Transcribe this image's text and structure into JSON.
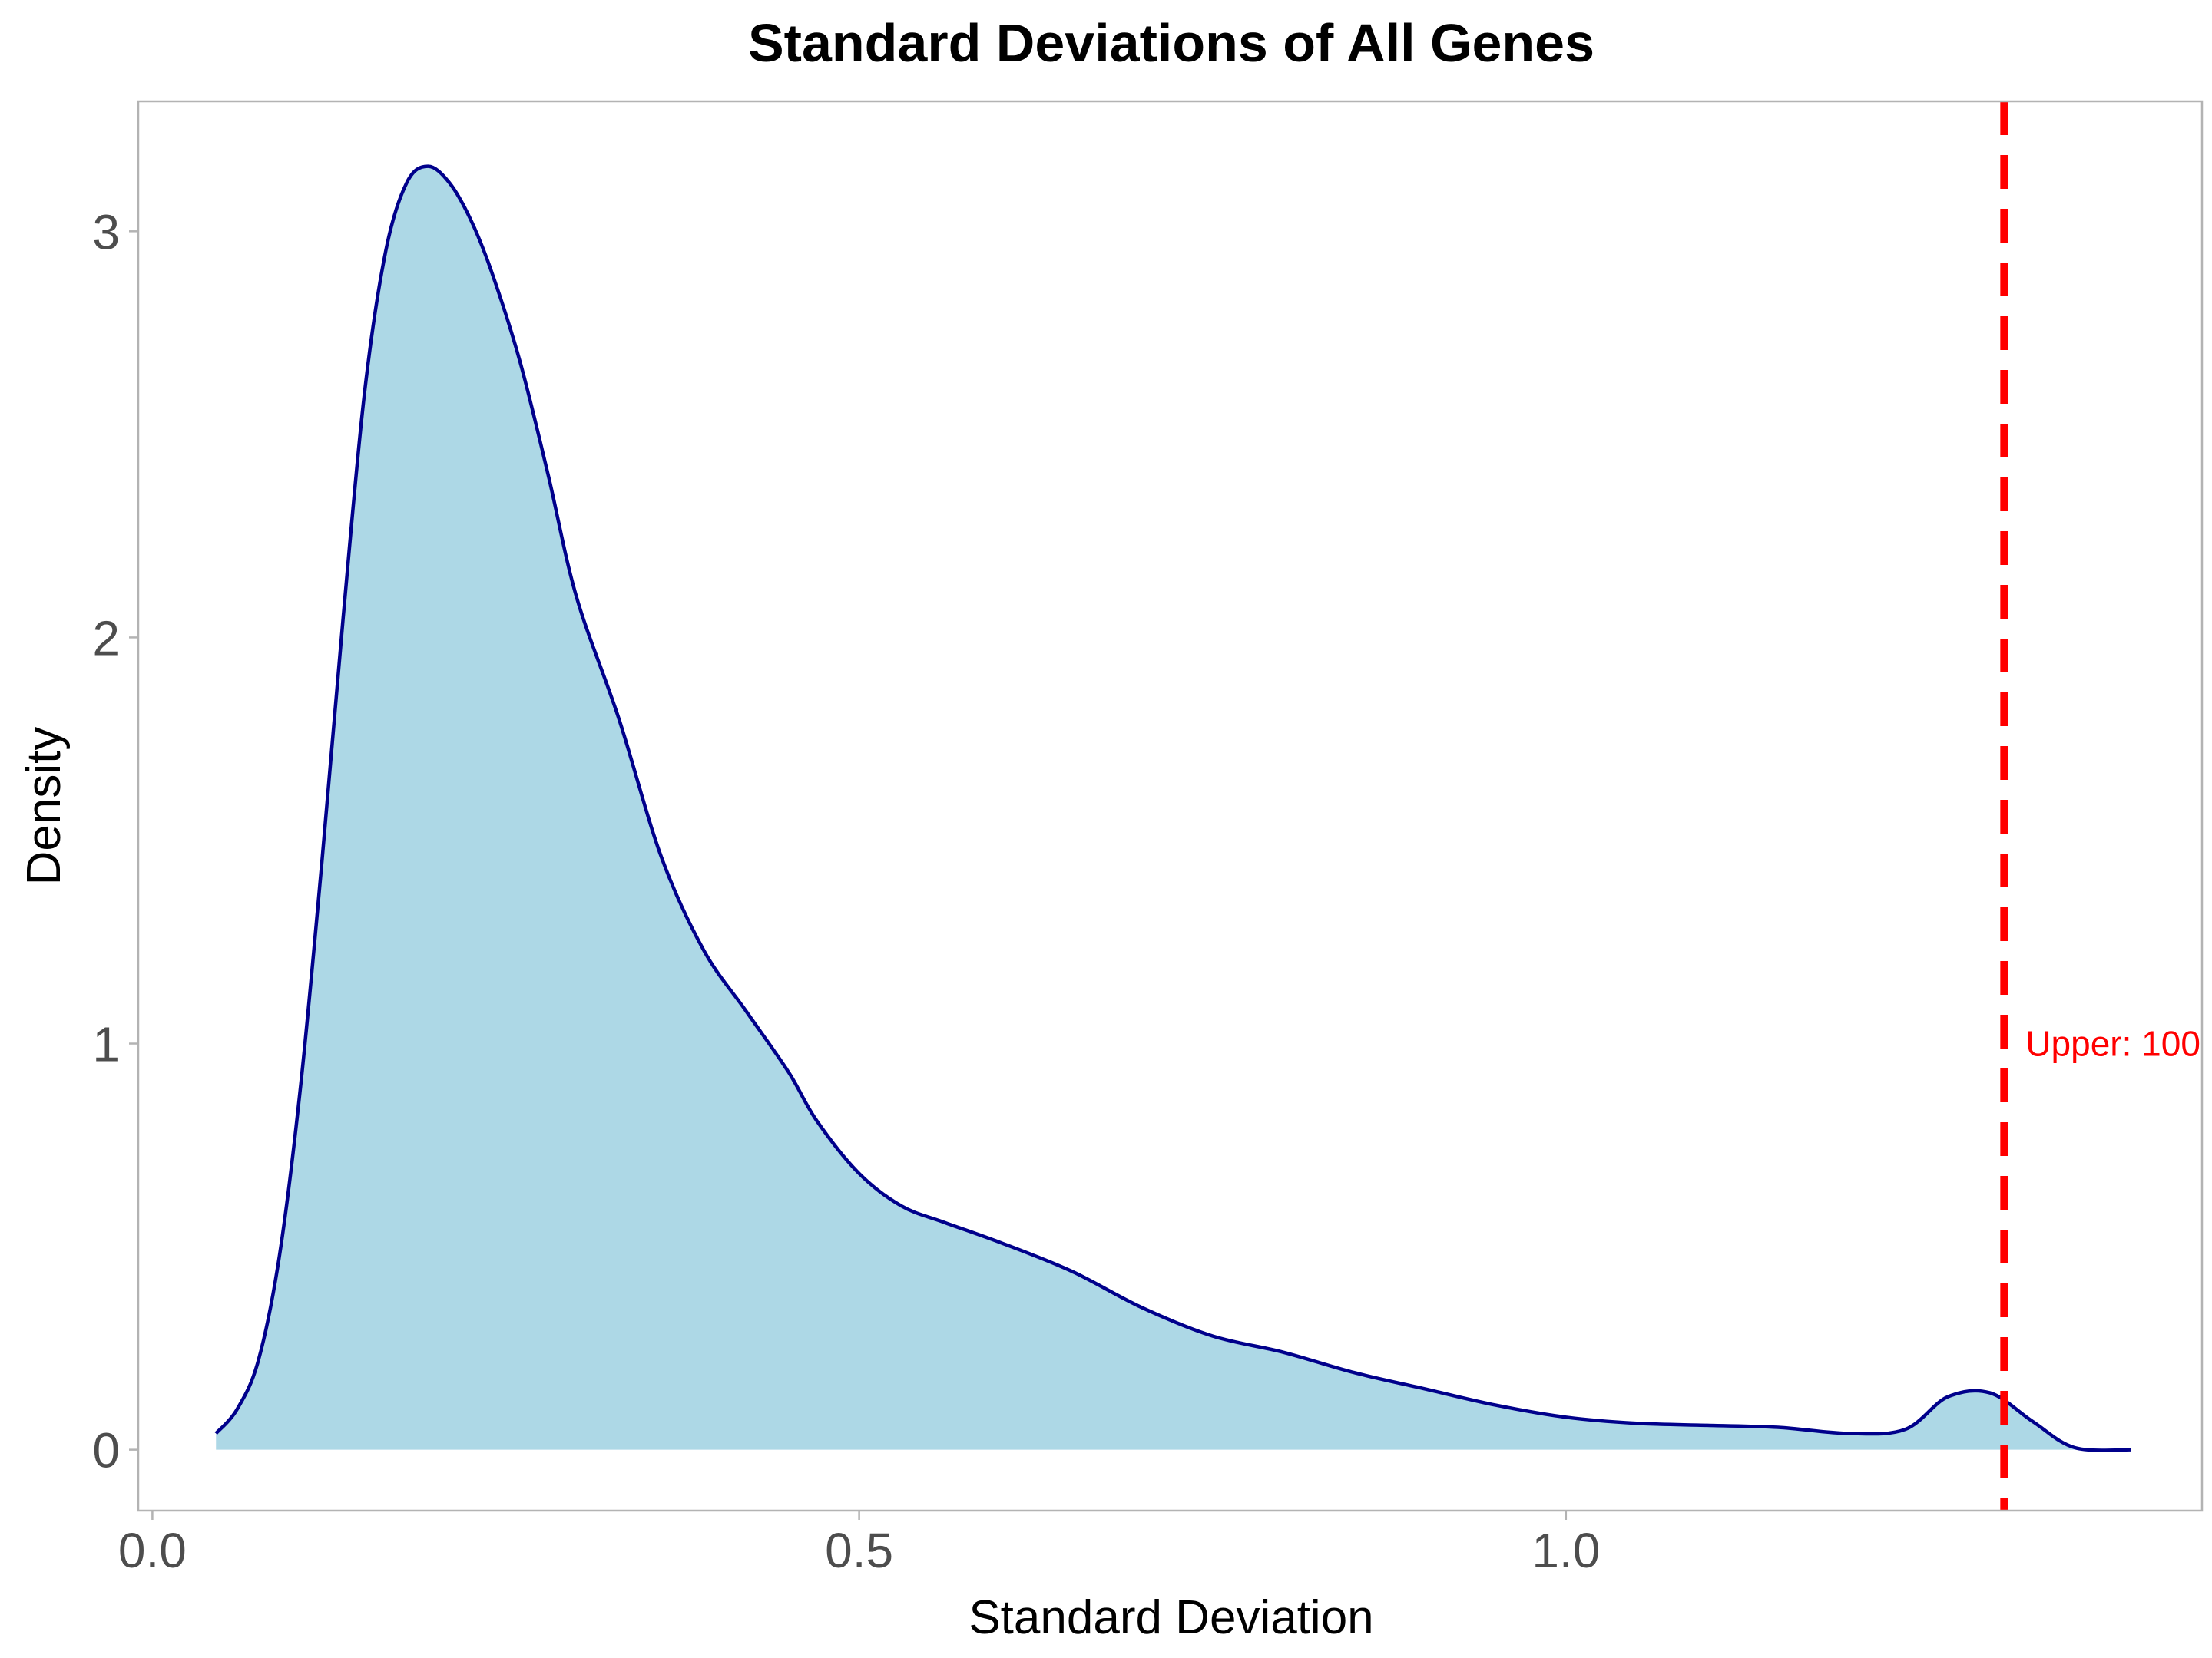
{
  "chart_data": {
    "type": "area",
    "title": "Standard Deviations of All Genes",
    "xlabel": "Standard Deviation",
    "ylabel": "Density",
    "xlim": [
      -0.01,
      1.45
    ],
    "ylim": [
      -0.15,
      3.32
    ],
    "x_ticks": [
      {
        "value": 0.0,
        "label": "0.0"
      },
      {
        "value": 0.5,
        "label": "0.5"
      },
      {
        "value": 1.0,
        "label": "1.0"
      }
    ],
    "y_ticks": [
      {
        "value": 0,
        "label": "0"
      },
      {
        "value": 1,
        "label": "1"
      },
      {
        "value": 2,
        "label": "2"
      },
      {
        "value": 3,
        "label": "3"
      }
    ],
    "grid": false,
    "series": [
      {
        "fill_color": "#add8e6",
        "line_color": "#00008b",
        "x": [
          0.045,
          0.06,
          0.075,
          0.09,
          0.105,
          0.12,
          0.135,
          0.15,
          0.165,
          0.18,
          0.195,
          0.21,
          0.225,
          0.24,
          0.26,
          0.28,
          0.3,
          0.33,
          0.36,
          0.39,
          0.42,
          0.45,
          0.47,
          0.5,
          0.53,
          0.56,
          0.6,
          0.65,
          0.7,
          0.75,
          0.8,
          0.85,
          0.9,
          0.95,
          1.0,
          1.05,
          1.1,
          1.15,
          1.2,
          1.24,
          1.27,
          1.3,
          1.33,
          1.36,
          1.4
        ],
        "y": [
          0.04,
          0.1,
          0.22,
          0.48,
          0.9,
          1.45,
          2.05,
          2.6,
          2.95,
          3.12,
          3.16,
          3.12,
          3.03,
          2.9,
          2.68,
          2.4,
          2.1,
          1.8,
          1.46,
          1.23,
          1.08,
          0.93,
          0.81,
          0.68,
          0.6,
          0.56,
          0.51,
          0.44,
          0.35,
          0.28,
          0.24,
          0.19,
          0.15,
          0.11,
          0.08,
          0.065,
          0.06,
          0.055,
          0.04,
          0.05,
          0.13,
          0.14,
          0.07,
          0.005,
          0.0
        ]
      }
    ],
    "annotations": [
      {
        "type": "vline",
        "x": 1.31,
        "color": "#ff0000",
        "style": "dashed",
        "label": "Upper: 100"
      }
    ]
  }
}
